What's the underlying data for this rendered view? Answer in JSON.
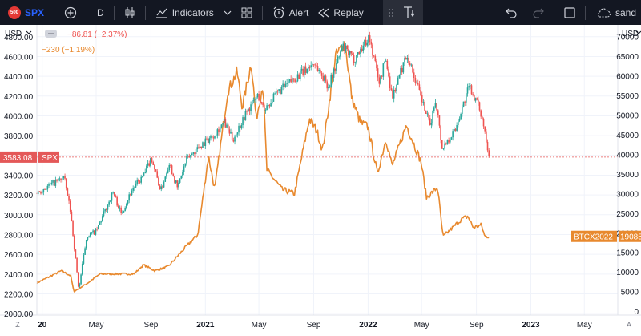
{
  "toolbar": {
    "symbol_badge": "500",
    "symbol": "SPX",
    "add_symbol_icon": "plus-circle-icon",
    "interval": "D",
    "chart_type_icon": "candlestick-icon",
    "indicators_label": "Indicators",
    "layout_icon": "grid-icon",
    "alert_label": "Alert",
    "replay_label": "Replay",
    "text_tool_icon": "text-tool-icon",
    "undo_icon": "undo-icon",
    "redo_icon": "redo-icon",
    "fullscreen_icon": "square-icon",
    "cloud_label": "sand"
  },
  "colors": {
    "up": "#26a69a",
    "down": "#ef5350",
    "btc_line": "#e8892e",
    "last_price_line": "#e45858",
    "toolbar_bg": "#131722"
  },
  "chart_data": {
    "type": "line",
    "title": "",
    "xlabel": "",
    "left_axis": {
      "currency": "USD",
      "ylim": [
        1985,
        4920
      ],
      "ticks": [
        "4800.00",
        "4600.00",
        "4400.00",
        "4200.00",
        "4000.00",
        "3800.00",
        "3600.00",
        "3400.00",
        "3200.00",
        "3000.00",
        "2800.00",
        "2600.00",
        "2400.00",
        "2200.00",
        "2000.00"
      ]
    },
    "right_axis": {
      "currency": "USD",
      "ylim": [
        -1000,
        73000
      ],
      "ticks": [
        "70000",
        "65000",
        "60000",
        "55000",
        "50000",
        "45000",
        "40000",
        "35000",
        "30000",
        "25000",
        "20000",
        "15000",
        "10000",
        "5000",
        "0"
      ]
    },
    "x_ticks": [
      {
        "label": "20",
        "date": "2020-01-01",
        "bold": true
      },
      {
        "label": "May",
        "date": "2020-05-01",
        "bold": false
      },
      {
        "label": "Sep",
        "date": "2020-09-01",
        "bold": false
      },
      {
        "label": "2021",
        "date": "2021-01-01",
        "bold": true
      },
      {
        "label": "May",
        "date": "2021-05-01",
        "bold": false
      },
      {
        "label": "Sep",
        "date": "2021-09-01",
        "bold": false
      },
      {
        "label": "2022",
        "date": "2022-01-01",
        "bold": true
      },
      {
        "label": "May",
        "date": "2022-05-01",
        "bold": false
      },
      {
        "label": "Sep",
        "date": "2022-09-01",
        "bold": false
      },
      {
        "label": "2023",
        "date": "2023-01-01",
        "bold": true
      },
      {
        "label": "May",
        "date": "2023-05-01",
        "bold": false
      }
    ],
    "x_range": [
      "2019-12-20",
      "2023-07-15"
    ],
    "series": [
      {
        "name": "SPX",
        "axis": "left",
        "style": "candles",
        "change_text": "−86.81 (−2.37%)",
        "last_value": "3583.08",
        "points": [
          [
            "2019-12-20",
            3220
          ],
          [
            "2020-01-15",
            3290
          ],
          [
            "2020-02-19",
            3380
          ],
          [
            "2020-03-05",
            3020
          ],
          [
            "2020-03-23",
            2240
          ],
          [
            "2020-04-10",
            2790
          ],
          [
            "2020-05-01",
            2830
          ],
          [
            "2020-06-08",
            3230
          ],
          [
            "2020-06-26",
            3010
          ],
          [
            "2020-07-20",
            3250
          ],
          [
            "2020-08-15",
            3390
          ],
          [
            "2020-09-02",
            3580
          ],
          [
            "2020-09-23",
            3240
          ],
          [
            "2020-10-12",
            3530
          ],
          [
            "2020-10-30",
            3270
          ],
          [
            "2020-11-20",
            3560
          ],
          [
            "2020-12-20",
            3700
          ],
          [
            "2021-01-15",
            3790
          ],
          [
            "2021-02-12",
            3930
          ],
          [
            "2021-03-04",
            3760
          ],
          [
            "2021-04-01",
            4020
          ],
          [
            "2021-04-29",
            4210
          ],
          [
            "2021-05-12",
            4060
          ],
          [
            "2021-06-15",
            4250
          ],
          [
            "2021-07-15",
            4360
          ],
          [
            "2021-08-15",
            4470
          ],
          [
            "2021-09-02",
            4540
          ],
          [
            "2021-10-04",
            4300
          ],
          [
            "2021-11-05",
            4700
          ],
          [
            "2021-11-30",
            4570
          ],
          [
            "2022-01-03",
            4800
          ],
          [
            "2022-01-27",
            4330
          ],
          [
            "2022-02-09",
            4590
          ],
          [
            "2022-02-24",
            4190
          ],
          [
            "2022-03-29",
            4630
          ],
          [
            "2022-05-20",
            3900
          ],
          [
            "2022-06-02",
            4170
          ],
          [
            "2022-06-16",
            3670
          ],
          [
            "2022-07-15",
            3860
          ],
          [
            "2022-08-16",
            4300
          ],
          [
            "2022-09-09",
            4060
          ],
          [
            "2022-09-20",
            3850
          ],
          [
            "2022-09-30",
            3583
          ]
        ]
      },
      {
        "name": "BTCX2022",
        "axis": "right",
        "style": "line",
        "change_text": "−230 (−1.19%)",
        "last_value": "19085",
        "points": [
          [
            "2019-12-20",
            7200
          ],
          [
            "2020-02-13",
            10300
          ],
          [
            "2020-03-05",
            9000
          ],
          [
            "2020-03-12",
            5000
          ],
          [
            "2020-04-10",
            7000
          ],
          [
            "2020-05-10",
            9500
          ],
          [
            "2020-07-25",
            9500
          ],
          [
            "2020-08-15",
            11800
          ],
          [
            "2020-09-10",
            10300
          ],
          [
            "2020-10-10",
            11400
          ],
          [
            "2020-11-15",
            16000
          ],
          [
            "2020-12-15",
            19500
          ],
          [
            "2021-01-08",
            39500
          ],
          [
            "2021-01-22",
            31000
          ],
          [
            "2021-02-20",
            56000
          ],
          [
            "2021-03-13",
            61000
          ],
          [
            "2021-03-25",
            52000
          ],
          [
            "2021-04-14",
            63500
          ],
          [
            "2021-04-25",
            49000
          ],
          [
            "2021-05-10",
            58000
          ],
          [
            "2021-05-19",
            36000
          ],
          [
            "2021-06-22",
            31000
          ],
          [
            "2021-07-20",
            30000
          ],
          [
            "2021-08-22",
            49000
          ],
          [
            "2021-09-08",
            46000
          ],
          [
            "2021-09-21",
            41000
          ],
          [
            "2021-10-20",
            65000
          ],
          [
            "2021-11-10",
            68500
          ],
          [
            "2021-11-26",
            54000
          ],
          [
            "2021-12-15",
            48000
          ],
          [
            "2022-01-01",
            47000
          ],
          [
            "2022-01-22",
            35000
          ],
          [
            "2022-02-10",
            44000
          ],
          [
            "2022-02-24",
            37000
          ],
          [
            "2022-03-28",
            47500
          ],
          [
            "2022-04-30",
            38000
          ],
          [
            "2022-05-12",
            29000
          ],
          [
            "2022-06-06",
            31500
          ],
          [
            "2022-06-18",
            19000
          ],
          [
            "2022-07-30",
            23500
          ],
          [
            "2022-08-13",
            24200
          ],
          [
            "2022-08-25",
            21300
          ],
          [
            "2022-09-12",
            22000
          ],
          [
            "2022-09-20",
            19000
          ],
          [
            "2022-09-30",
            19085
          ]
        ]
      }
    ],
    "grid": true,
    "legend": "top-left",
    "bottom_left_label": "Z",
    "bottom_right_label": "A"
  }
}
